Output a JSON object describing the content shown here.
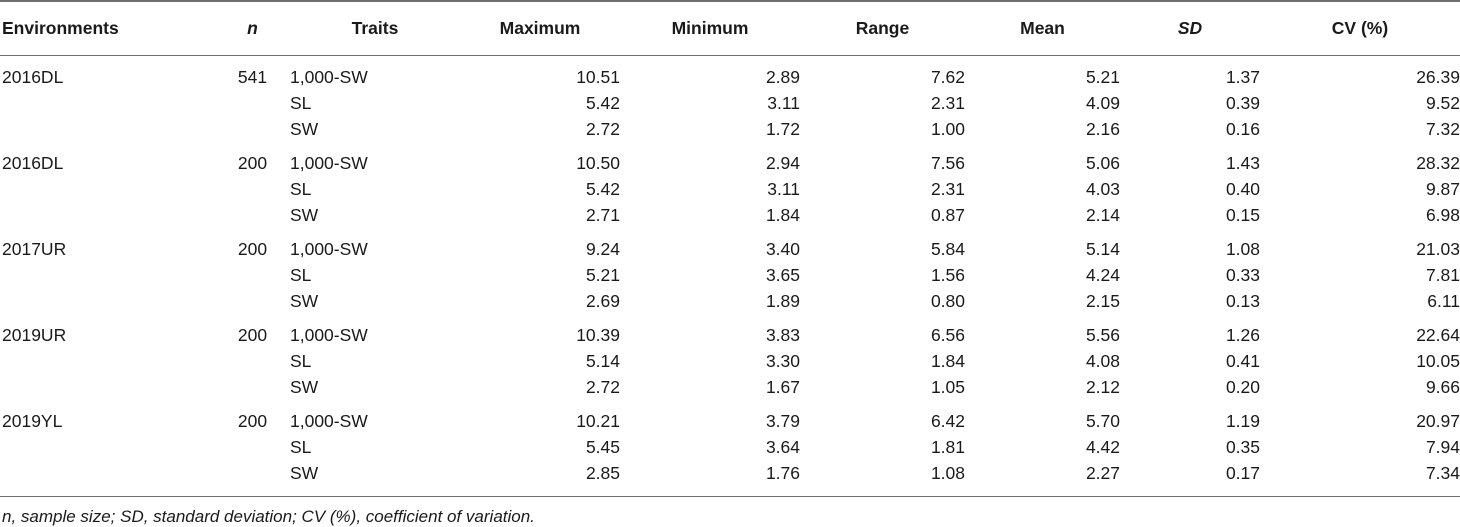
{
  "table": {
    "headers": {
      "environments": "Environments",
      "n": "n",
      "traits": "Traits",
      "maximum": "Maximum",
      "minimum": "Minimum",
      "range": "Range",
      "mean": "Mean",
      "sd": "SD",
      "cv": "CV (%)"
    },
    "rows": [
      {
        "env": "2016DL",
        "n": "541",
        "trait": "1,000-SW",
        "max": "10.51",
        "min": "2.89",
        "range": "7.62",
        "mean": "5.21",
        "sd": "1.37",
        "cv": "26.39"
      },
      {
        "env": "",
        "n": "",
        "trait": "SL",
        "max": "5.42",
        "min": "3.11",
        "range": "2.31",
        "mean": "4.09",
        "sd": "0.39",
        "cv": "9.52"
      },
      {
        "env": "",
        "n": "",
        "trait": "SW",
        "max": "2.72",
        "min": "1.72",
        "range": "1.00",
        "mean": "2.16",
        "sd": "0.16",
        "cv": "7.32"
      },
      {
        "env": "2016DL",
        "n": "200",
        "trait": "1,000-SW",
        "max": "10.50",
        "min": "2.94",
        "range": "7.56",
        "mean": "5.06",
        "sd": "1.43",
        "cv": "28.32"
      },
      {
        "env": "",
        "n": "",
        "trait": "SL",
        "max": "5.42",
        "min": "3.11",
        "range": "2.31",
        "mean": "4.03",
        "sd": "0.40",
        "cv": "9.87"
      },
      {
        "env": "",
        "n": "",
        "trait": "SW",
        "max": "2.71",
        "min": "1.84",
        "range": "0.87",
        "mean": "2.14",
        "sd": "0.15",
        "cv": "6.98"
      },
      {
        "env": "2017UR",
        "n": "200",
        "trait": "1,000-SW",
        "max": "9.24",
        "min": "3.40",
        "range": "5.84",
        "mean": "5.14",
        "sd": "1.08",
        "cv": "21.03"
      },
      {
        "env": "",
        "n": "",
        "trait": "SL",
        "max": "5.21",
        "min": "3.65",
        "range": "1.56",
        "mean": "4.24",
        "sd": "0.33",
        "cv": "7.81"
      },
      {
        "env": "",
        "n": "",
        "trait": "SW",
        "max": "2.69",
        "min": "1.89",
        "range": "0.80",
        "mean": "2.15",
        "sd": "0.13",
        "cv": "6.11"
      },
      {
        "env": "2019UR",
        "n": "200",
        "trait": "1,000-SW",
        "max": "10.39",
        "min": "3.83",
        "range": "6.56",
        "mean": "5.56",
        "sd": "1.26",
        "cv": "22.64"
      },
      {
        "env": "",
        "n": "",
        "trait": "SL",
        "max": "5.14",
        "min": "3.30",
        "range": "1.84",
        "mean": "4.08",
        "sd": "0.41",
        "cv": "10.05"
      },
      {
        "env": "",
        "n": "",
        "trait": "SW",
        "max": "2.72",
        "min": "1.67",
        "range": "1.05",
        "mean": "2.12",
        "sd": "0.20",
        "cv": "9.66"
      },
      {
        "env": "2019YL",
        "n": "200",
        "trait": "1,000-SW",
        "max": "10.21",
        "min": "3.79",
        "range": "6.42",
        "mean": "5.70",
        "sd": "1.19",
        "cv": "20.97"
      },
      {
        "env": "",
        "n": "",
        "trait": "SL",
        "max": "5.45",
        "min": "3.64",
        "range": "1.81",
        "mean": "4.42",
        "sd": "0.35",
        "cv": "7.94"
      },
      {
        "env": "",
        "n": "",
        "trait": "SW",
        "max": "2.85",
        "min": "1.76",
        "range": "1.08",
        "mean": "2.27",
        "sd": "0.17",
        "cv": "7.34"
      }
    ]
  },
  "footnote": "n, sample size; SD, standard deviation; CV (%), coefficient of variation."
}
